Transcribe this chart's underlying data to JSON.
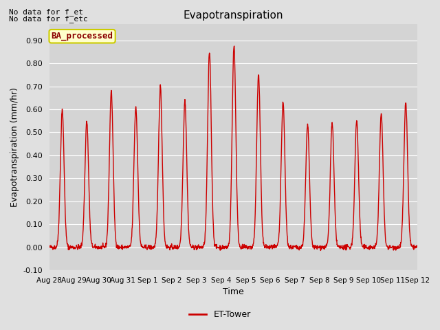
{
  "title": "Evapotranspiration",
  "ylabel": "Evapotranspiration (mm/hr)",
  "xlabel": "Time",
  "ylim": [
    -0.1,
    0.97
  ],
  "yticks": [
    -0.1,
    0.0,
    0.1,
    0.2,
    0.3,
    0.4,
    0.5,
    0.6,
    0.7,
    0.8,
    0.9
  ],
  "line_color": "#cc0000",
  "line_width": 1.0,
  "bg_color": "#e0e0e0",
  "plot_bg_color": "#d4d4d4",
  "legend_label": "ET-Tower",
  "legend_line_color": "#cc0000",
  "annotation_text1": "No data for f_et",
  "annotation_text2": "No data for f_etc",
  "box_label": "BA_processed",
  "box_facecolor": "#ffffcc",
  "box_edgecolor": "#cccc00",
  "xtick_labels": [
    "Aug 28",
    "Aug 29",
    "Aug 30",
    "Aug 31",
    "Sep 1",
    "Sep 2",
    "Sep 3",
    "Sep 4",
    "Sep 5",
    "Sep 6",
    "Sep 7",
    "Sep 8",
    "Sep 9",
    "Sep 10",
    "Sep 11",
    "Sep 12"
  ],
  "n_days": 15,
  "points_per_day": 96,
  "daily_peaks": [
    0.6,
    0.55,
    0.68,
    0.61,
    0.7,
    0.64,
    0.85,
    0.88,
    0.75,
    0.63,
    0.53,
    0.54,
    0.55,
    0.58,
    0.63
  ],
  "peak_hour": [
    12.5,
    12.5,
    12.5,
    12.5,
    12.5,
    12.5,
    12.5,
    12.5,
    12.5,
    12.5,
    12.5,
    12.5,
    12.5,
    12.5,
    12.5
  ],
  "sigma": 1.8
}
